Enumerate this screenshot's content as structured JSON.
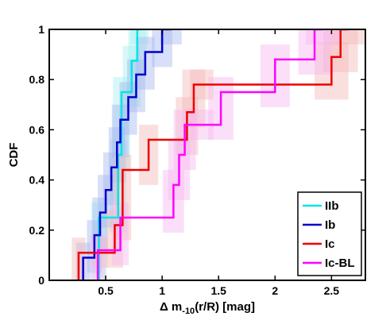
{
  "chart_data": {
    "type": "line",
    "title": "",
    "xlabel": "Δ m",
    "xlabel_sub": "-10",
    "xlabel_rest": "(r/R) [mag]",
    "ylabel": "CDF",
    "xlim": [
      0,
      2.8
    ],
    "ylim": [
      0,
      1
    ],
    "x_ticks": [
      0.5,
      1,
      1.5,
      2,
      2.5
    ],
    "x_tick_labels": [
      "0.5",
      "1",
      "1.5",
      "2",
      "2.5"
    ],
    "y_ticks": [
      0,
      0.2,
      0.4,
      0.6,
      0.8,
      1
    ],
    "y_tick_labels": [
      "0",
      "0.2",
      "0.4",
      "0.6",
      "0.8",
      "1"
    ],
    "grid": false,
    "legend_position": "bottom-right",
    "series": [
      {
        "name": "IIb",
        "color": "#00e5e5",
        "band_color": "#a8f0f0",
        "x": [
          0.44,
          0.61,
          0.64,
          0.73,
          0.78,
          0.8
        ],
        "y": [
          0.25,
          0.5,
          0.75,
          0.875,
          1.0,
          1.0
        ]
      },
      {
        "name": "Ib",
        "color": "#0000cc",
        "band_color": "#a8b8f0",
        "x": [
          0.3,
          0.4,
          0.45,
          0.5,
          0.55,
          0.6,
          0.63,
          0.7,
          0.77,
          0.85,
          1.0,
          1.08
        ],
        "y": [
          0.09,
          0.18,
          0.27,
          0.36,
          0.45,
          0.55,
          0.64,
          0.73,
          0.82,
          0.91,
          1.0,
          1.0
        ]
      },
      {
        "name": "Ic",
        "color": "#ee0000",
        "band_color": "#f5b8b8",
        "x": [
          0.26,
          0.45,
          0.58,
          0.65,
          0.88,
          1.22,
          1.28,
          1.35,
          2.5,
          2.58,
          2.65
        ],
        "y": [
          0.11,
          0.11,
          0.22,
          0.44,
          0.56,
          0.67,
          0.78,
          0.78,
          0.89,
          1.0,
          1.0
        ]
      },
      {
        "name": "Ic-BL",
        "color": "#ff00ff",
        "band_color": "#f7b8f0",
        "x": [
          0.43,
          0.63,
          1.1,
          1.15,
          1.2,
          1.35,
          1.52,
          2.0,
          2.35,
          2.42
        ],
        "y": [
          0.12,
          0.25,
          0.38,
          0.5,
          0.62,
          0.62,
          0.75,
          0.88,
          1.0,
          1.0
        ]
      }
    ]
  }
}
